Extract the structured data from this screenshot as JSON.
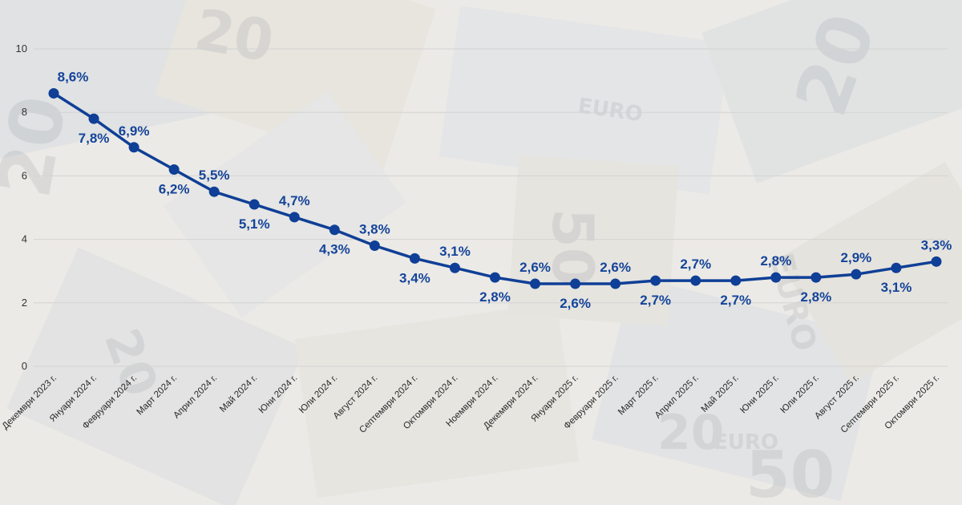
{
  "colors": {
    "line": "#0f3f96",
    "label": "#14449a",
    "grid": "#d3d3d3",
    "background": "#eceae6"
  },
  "chart_data": {
    "type": "line",
    "title": "",
    "xlabel": "",
    "ylabel": "",
    "ylim": [
      0,
      10
    ],
    "yticks": [
      0,
      2,
      4,
      6,
      8,
      10
    ],
    "grid": true,
    "categories": [
      "Декември 2023 г.",
      "Януари 2024 г.",
      "Февруари 2024 г.",
      "Март 2024 г.",
      "Април 2024 г.",
      "Май 2024 г.",
      "Юни 2024 г.",
      "Юли 2024 г.",
      "Август 2024 г.",
      "Септември 2024 г.",
      "Октомври 2024 г.",
      "Ноември 2024 г.",
      "Декември 2024 г.",
      "Януари 2025 г.",
      "Февруари 2025 г.",
      "Март 2025 г.",
      "Април 2025 г.",
      "Май 2025 г.",
      "Юни 2025 г.",
      "Юли 2025 г.",
      "Август 2025 г.",
      "Септември 2025 г.",
      "Октомври 2025 г."
    ],
    "series": [
      {
        "name": "",
        "values": [
          8.6,
          7.8,
          6.9,
          6.2,
          5.5,
          5.1,
          4.7,
          4.3,
          3.8,
          3.4,
          3.1,
          2.8,
          2.6,
          2.6,
          2.6,
          2.7,
          2.7,
          2.7,
          2.8,
          2.8,
          2.9,
          3.1,
          3.3
        ],
        "labels": [
          "8,6%",
          "7,8%",
          "6,9%",
          "6,2%",
          "5,5%",
          "5,1%",
          "4,7%",
          "4,3%",
          "3,8%",
          "3,4%",
          "3,1%",
          "2,8%",
          "2,6%",
          "2,6%",
          "2,6%",
          "2,7%",
          "2,7%",
          "2,7%",
          "2,8%",
          "2,8%",
          "2,9%",
          "3,1%",
          "3,3%"
        ],
        "label_positions": [
          "above",
          "below",
          "above",
          "below",
          "above",
          "below",
          "above",
          "below",
          "above",
          "below",
          "above",
          "below",
          "above",
          "below",
          "above",
          "below",
          "above",
          "below",
          "above",
          "below",
          "above",
          "below",
          "above"
        ]
      }
    ]
  }
}
